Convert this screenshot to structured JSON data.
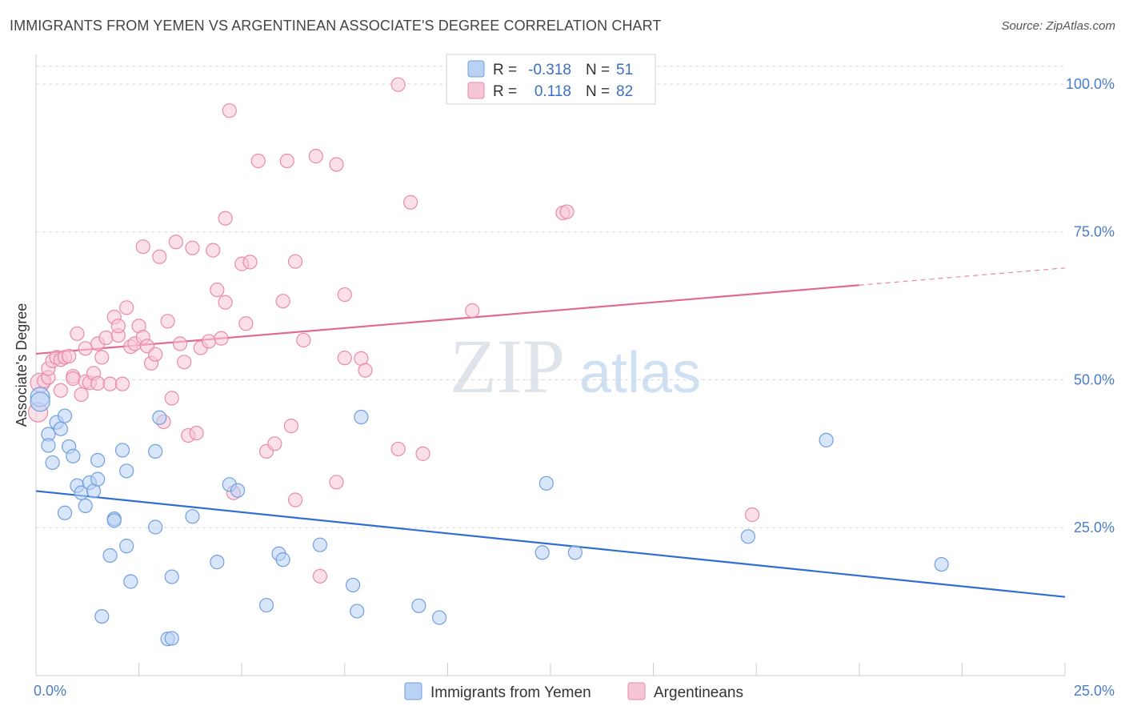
{
  "title": "IMMIGRANTS FROM YEMEN VS ARGENTINEAN ASSOCIATE'S DEGREE CORRELATION CHART",
  "source": "Source: ZipAtlas.com",
  "watermark": {
    "zip": "ZIP",
    "atlas": "atlas"
  },
  "colors": {
    "blue_fill": "#b9d2f4",
    "blue_stroke": "#6f9fe0",
    "blue_line": "#2f6fd0",
    "pink_fill": "#f7c6d6",
    "pink_stroke": "#e98aaa",
    "pink_line": "#e06a94"
  },
  "legend_box": {
    "rows": [
      {
        "r_label": "R =",
        "r_value": "-0.318",
        "n_label": "N =",
        "n_value": "51"
      },
      {
        "r_label": "R =",
        "r_value": "0.118",
        "n_label": "N =",
        "n_value": "82"
      }
    ]
  },
  "bottom_legend": [
    "Immigrants from Yemen",
    "Argentineans"
  ],
  "chart_data": {
    "type": "scatter",
    "title": "IMMIGRANTS FROM YEMEN VS ARGENTINEAN ASSOCIATE'S DEGREE CORRELATION CHART",
    "xlabel": "",
    "ylabel": "Associate's Degree",
    "xlim": [
      0,
      25
    ],
    "ylim": [
      0,
      105
    ],
    "x_tick_labels": [
      "0.0%",
      "25.0%"
    ],
    "y_ticks": [
      25,
      50,
      75,
      100
    ],
    "y_tick_labels": [
      "25.0%",
      "50.0%",
      "75.0%",
      "100.0%"
    ],
    "grid": true,
    "legend_position": "top-center",
    "series": [
      {
        "name": "Immigrants from Yemen",
        "r": -0.318,
        "n": 51,
        "trend": {
          "x0": 0,
          "y0": 31.2,
          "x1": 25,
          "y1": 13.3
        },
        "points": [
          [
            0.1,
            47.1
          ],
          [
            0.1,
            46.3
          ],
          [
            0.3,
            40.8
          ],
          [
            0.3,
            38.9
          ],
          [
            0.4,
            36.0
          ],
          [
            0.5,
            42.8
          ],
          [
            0.6,
            41.7
          ],
          [
            0.7,
            43.9
          ],
          [
            0.7,
            27.5
          ],
          [
            0.8,
            38.7
          ],
          [
            0.9,
            37.1
          ],
          [
            1.0,
            32.1
          ],
          [
            1.1,
            30.9
          ],
          [
            1.2,
            28.7
          ],
          [
            1.3,
            32.6
          ],
          [
            1.4,
            31.2
          ],
          [
            1.5,
            33.2
          ],
          [
            1.5,
            36.4
          ],
          [
            1.6,
            10.0
          ],
          [
            1.8,
            20.3
          ],
          [
            1.9,
            26.5
          ],
          [
            1.9,
            26.2
          ],
          [
            2.1,
            38.1
          ],
          [
            2.2,
            21.9
          ],
          [
            2.2,
            34.6
          ],
          [
            2.3,
            15.9
          ],
          [
            2.9,
            25.1
          ],
          [
            2.9,
            37.9
          ],
          [
            3.0,
            43.6
          ],
          [
            3.2,
            6.2
          ],
          [
            3.3,
            6.3
          ],
          [
            3.3,
            16.7
          ],
          [
            3.8,
            26.9
          ],
          [
            4.4,
            19.2
          ],
          [
            4.7,
            32.3
          ],
          [
            4.9,
            31.3
          ],
          [
            5.6,
            11.9
          ],
          [
            5.9,
            20.6
          ],
          [
            6.0,
            19.6
          ],
          [
            6.9,
            22.1
          ],
          [
            7.7,
            15.3
          ],
          [
            7.8,
            10.9
          ],
          [
            7.9,
            43.7
          ],
          [
            9.3,
            11.8
          ],
          [
            9.8,
            9.8
          ],
          [
            12.3,
            20.8
          ],
          [
            12.4,
            32.5
          ],
          [
            13.1,
            20.8
          ],
          [
            17.3,
            23.5
          ],
          [
            19.2,
            39.8
          ],
          [
            22.0,
            18.8
          ]
        ]
      },
      {
        "name": "Argentineans",
        "r": 0.118,
        "n": 82,
        "trend": {
          "x0": 0,
          "y0": 54.4,
          "x1": 20,
          "y1": 66.0,
          "dash_to_x": 25,
          "dash_to_y": 68.9
        },
        "points": [
          [
            0.05,
            44.5
          ],
          [
            0.1,
            49.5
          ],
          [
            0.2,
            49.8
          ],
          [
            0.3,
            50.4
          ],
          [
            0.3,
            51.9
          ],
          [
            0.4,
            53.2
          ],
          [
            0.5,
            53.8
          ],
          [
            0.6,
            48.2
          ],
          [
            0.6,
            53.4
          ],
          [
            0.7,
            53.8
          ],
          [
            0.8,
            54.0
          ],
          [
            0.9,
            50.6
          ],
          [
            0.9,
            50.2
          ],
          [
            1.0,
            57.8
          ],
          [
            1.1,
            47.5
          ],
          [
            1.2,
            55.3
          ],
          [
            1.2,
            49.7
          ],
          [
            1.3,
            49.5
          ],
          [
            1.4,
            51.1
          ],
          [
            1.5,
            49.4
          ],
          [
            1.5,
            56.1
          ],
          [
            1.6,
            53.8
          ],
          [
            1.7,
            57.1
          ],
          [
            1.8,
            49.3
          ],
          [
            1.9,
            60.6
          ],
          [
            2.0,
            57.5
          ],
          [
            2.0,
            59.1
          ],
          [
            2.1,
            49.3
          ],
          [
            2.2,
            62.2
          ],
          [
            2.3,
            55.6
          ],
          [
            2.4,
            56.1
          ],
          [
            2.5,
            59.1
          ],
          [
            2.6,
            57.2
          ],
          [
            2.6,
            72.5
          ],
          [
            2.7,
            55.7
          ],
          [
            2.8,
            52.8
          ],
          [
            2.9,
            54.3
          ],
          [
            3.0,
            70.8
          ],
          [
            3.1,
            42.9
          ],
          [
            3.2,
            59.9
          ],
          [
            3.3,
            46.9
          ],
          [
            3.4,
            73.3
          ],
          [
            3.5,
            56.1
          ],
          [
            3.6,
            53.0
          ],
          [
            3.7,
            40.6
          ],
          [
            3.8,
            72.3
          ],
          [
            3.9,
            41.0
          ],
          [
            4.0,
            55.4
          ],
          [
            4.2,
            56.5
          ],
          [
            4.3,
            71.9
          ],
          [
            4.4,
            65.2
          ],
          [
            4.5,
            57.0
          ],
          [
            4.6,
            77.3
          ],
          [
            4.6,
            63.1
          ],
          [
            4.7,
            95.5
          ],
          [
            4.8,
            30.9
          ],
          [
            5.0,
            69.6
          ],
          [
            5.1,
            59.5
          ],
          [
            5.2,
            69.9
          ],
          [
            5.4,
            87.0
          ],
          [
            5.6,
            37.9
          ],
          [
            5.8,
            39.2
          ],
          [
            6.0,
            63.3
          ],
          [
            6.1,
            87.0
          ],
          [
            6.2,
            42.2
          ],
          [
            6.3,
            70.0
          ],
          [
            6.3,
            29.7
          ],
          [
            6.5,
            56.7
          ],
          [
            6.8,
            87.8
          ],
          [
            6.9,
            16.8
          ],
          [
            7.3,
            32.7
          ],
          [
            7.3,
            86.4
          ],
          [
            7.5,
            64.4
          ],
          [
            7.5,
            53.7
          ],
          [
            7.9,
            53.6
          ],
          [
            8.0,
            51.6
          ],
          [
            8.8,
            38.3
          ],
          [
            8.8,
            99.9
          ],
          [
            9.1,
            80.0
          ],
          [
            9.4,
            37.5
          ],
          [
            10.6,
            61.7
          ],
          [
            12.8,
            78.2
          ],
          [
            12.9,
            78.4
          ],
          [
            17.4,
            27.2
          ]
        ]
      }
    ]
  }
}
